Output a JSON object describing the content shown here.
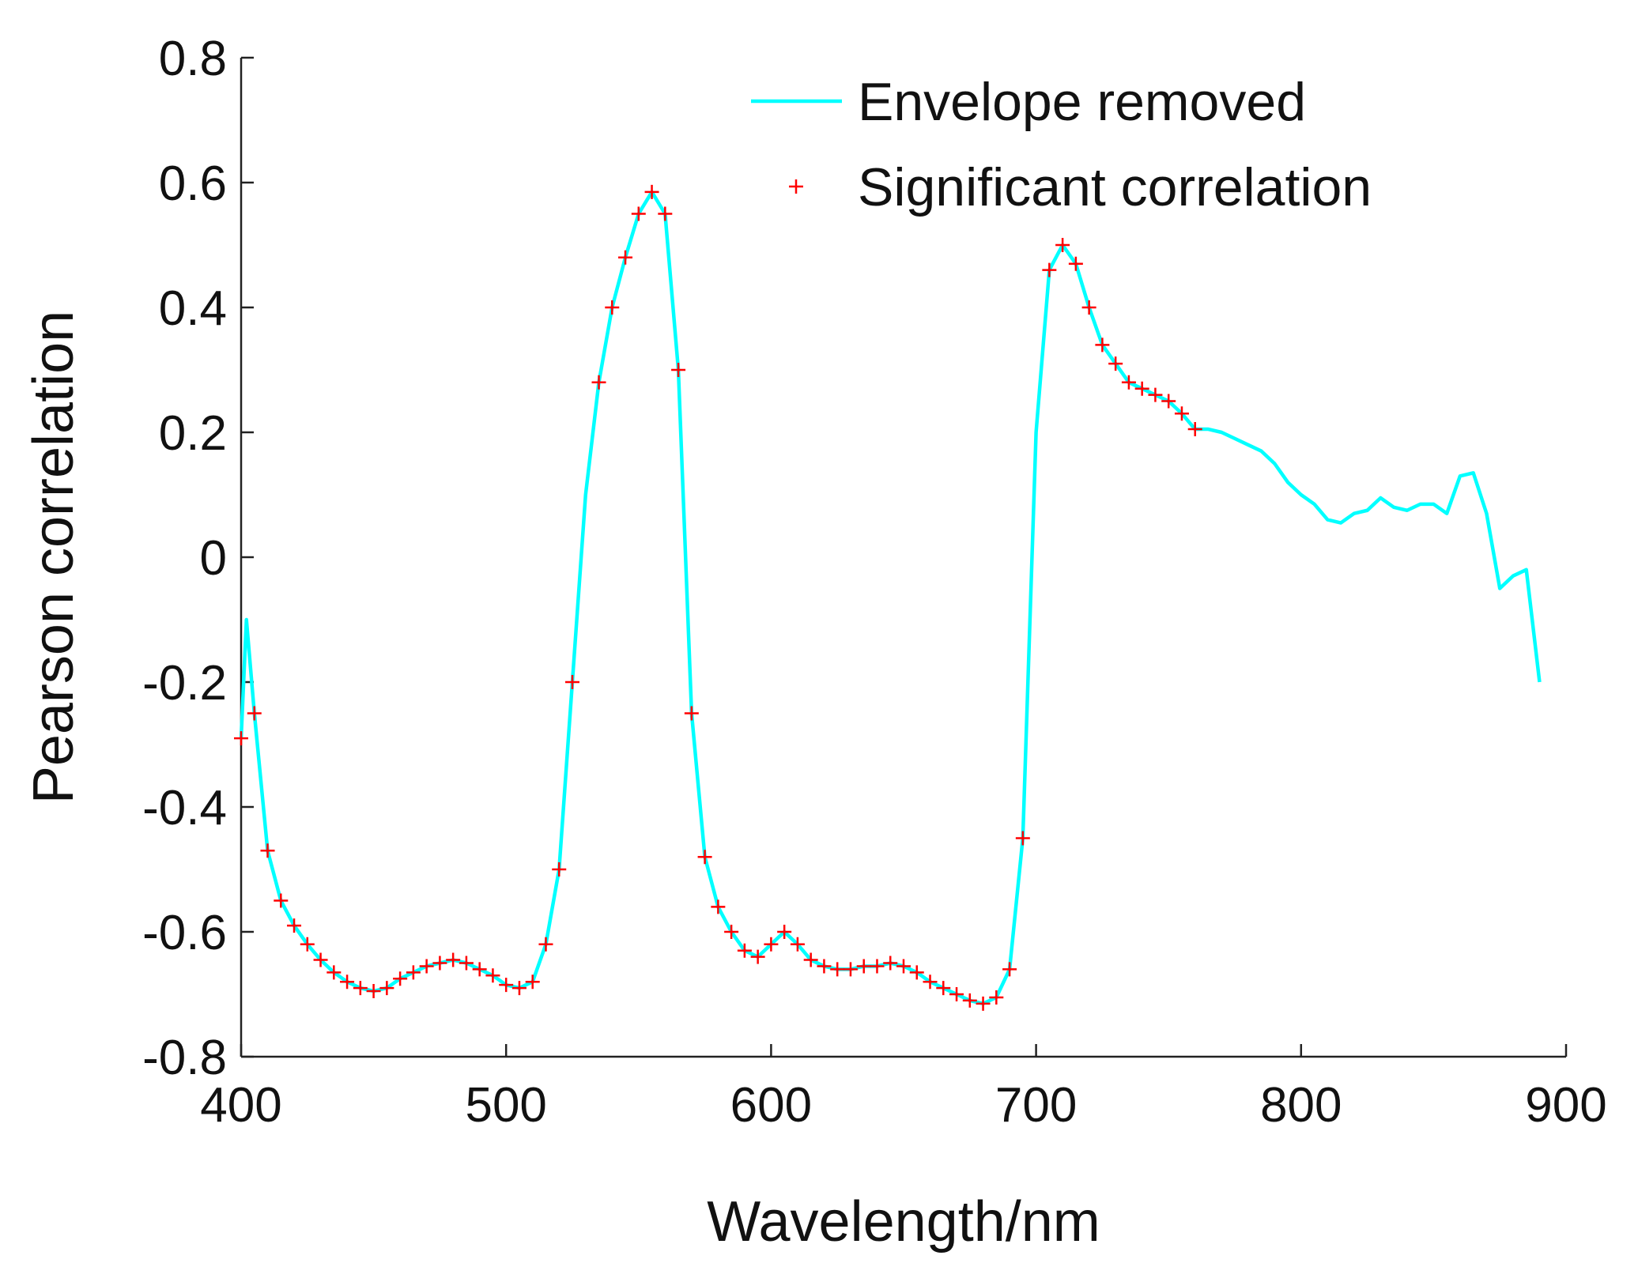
{
  "chart_data": {
    "type": "line",
    "xlabel": "Wavelength/nm",
    "ylabel": "Pearson correlation",
    "xlim": [
      400,
      900
    ],
    "ylim": [
      -0.8,
      0.8
    ],
    "xticks": [
      400,
      500,
      600,
      700,
      800,
      900
    ],
    "yticks": [
      -0.8,
      -0.6,
      -0.4,
      -0.2,
      0,
      0.2,
      0.4,
      0.6,
      0.8
    ],
    "legend": "upper right",
    "series": [
      {
        "name": "Envelope removed",
        "color": "#00ffff",
        "style": "line",
        "x": [
          400,
          402,
          405,
          410,
          415,
          420,
          425,
          430,
          435,
          440,
          445,
          450,
          455,
          460,
          465,
          470,
          475,
          480,
          485,
          490,
          495,
          500,
          505,
          510,
          515,
          520,
          525,
          530,
          535,
          540,
          545,
          550,
          555,
          560,
          565,
          570,
          575,
          580,
          585,
          590,
          595,
          600,
          605,
          610,
          615,
          620,
          625,
          630,
          635,
          640,
          645,
          650,
          655,
          660,
          665,
          670,
          675,
          680,
          685,
          690,
          695,
          700,
          705,
          710,
          715,
          720,
          725,
          730,
          735,
          740,
          745,
          750,
          755,
          760,
          765,
          770,
          775,
          780,
          785,
          790,
          795,
          800,
          805,
          810,
          815,
          820,
          825,
          830,
          835,
          840,
          845,
          850,
          855,
          860,
          865,
          870,
          875,
          880,
          885,
          890
        ],
        "values": [
          -0.29,
          -0.1,
          -0.25,
          -0.47,
          -0.55,
          -0.59,
          -0.62,
          -0.645,
          -0.665,
          -0.68,
          -0.69,
          -0.695,
          -0.69,
          -0.675,
          -0.665,
          -0.655,
          -0.65,
          -0.645,
          -0.65,
          -0.66,
          -0.67,
          -0.685,
          -0.69,
          -0.68,
          -0.62,
          -0.5,
          -0.2,
          0.1,
          0.28,
          0.4,
          0.48,
          0.55,
          0.585,
          0.55,
          0.3,
          -0.25,
          -0.48,
          -0.56,
          -0.6,
          -0.63,
          -0.64,
          -0.62,
          -0.6,
          -0.62,
          -0.645,
          -0.655,
          -0.66,
          -0.66,
          -0.655,
          -0.655,
          -0.65,
          -0.655,
          -0.665,
          -0.68,
          -0.69,
          -0.7,
          -0.71,
          -0.715,
          -0.705,
          -0.66,
          -0.45,
          0.2,
          0.46,
          0.5,
          0.47,
          0.4,
          0.34,
          0.31,
          0.28,
          0.27,
          0.26,
          0.25,
          0.23,
          0.205,
          0.205,
          0.2,
          0.19,
          0.18,
          0.17,
          0.15,
          0.12,
          0.1,
          0.085,
          0.06,
          0.055,
          0.07,
          0.075,
          0.095,
          0.08,
          0.075,
          0.085,
          0.085,
          0.07,
          0.13,
          0.135,
          0.07,
          -0.05,
          -0.03,
          -0.02,
          -0.2
        ]
      },
      {
        "name": "Significant correlation",
        "color": "#ff0000",
        "style": "plus",
        "x": [
          400,
          405,
          410,
          415,
          420,
          425,
          430,
          435,
          440,
          445,
          450,
          455,
          460,
          465,
          470,
          475,
          480,
          485,
          490,
          495,
          500,
          505,
          510,
          515,
          520,
          525,
          535,
          540,
          545,
          550,
          555,
          560,
          565,
          570,
          575,
          580,
          585,
          590,
          595,
          600,
          605,
          610,
          615,
          620,
          625,
          630,
          635,
          640,
          645,
          650,
          655,
          660,
          665,
          670,
          675,
          680,
          685,
          690,
          695,
          705,
          710,
          715,
          720,
          725,
          730,
          735,
          740,
          745,
          750,
          755,
          760
        ],
        "values": [
          -0.29,
          -0.25,
          -0.47,
          -0.55,
          -0.59,
          -0.62,
          -0.645,
          -0.665,
          -0.68,
          -0.69,
          -0.695,
          -0.69,
          -0.675,
          -0.665,
          -0.655,
          -0.65,
          -0.645,
          -0.65,
          -0.66,
          -0.67,
          -0.685,
          -0.69,
          -0.68,
          -0.62,
          -0.5,
          -0.2,
          0.28,
          0.4,
          0.48,
          0.55,
          0.585,
          0.55,
          0.3,
          -0.25,
          -0.48,
          -0.56,
          -0.6,
          -0.63,
          -0.64,
          -0.62,
          -0.6,
          -0.62,
          -0.645,
          -0.655,
          -0.66,
          -0.66,
          -0.655,
          -0.655,
          -0.65,
          -0.655,
          -0.665,
          -0.68,
          -0.69,
          -0.7,
          -0.71,
          -0.715,
          -0.705,
          -0.66,
          -0.45,
          0.46,
          0.5,
          0.47,
          0.4,
          0.34,
          0.31,
          0.28,
          0.27,
          0.26,
          0.25,
          0.23,
          0.205
        ]
      }
    ]
  }
}
